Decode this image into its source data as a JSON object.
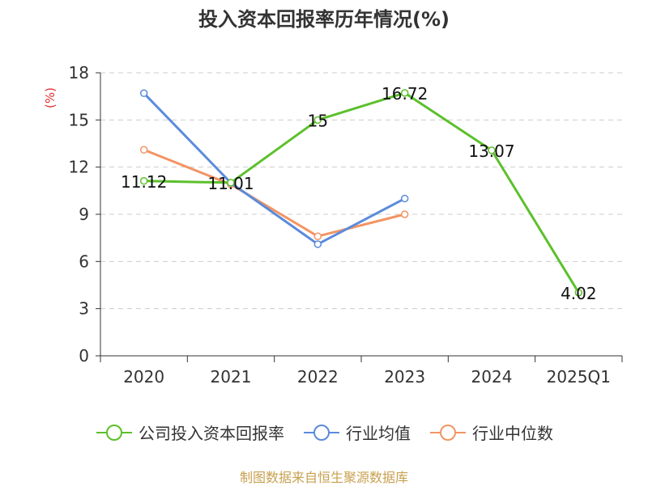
{
  "chart_data": {
    "type": "line",
    "title": "投入资本回报率历年情况(%)",
    "ylabel": "(%)",
    "categories": [
      "2020",
      "2021",
      "2022",
      "2023",
      "2024",
      "2025Q1"
    ],
    "ylim": [
      0,
      18
    ],
    "yticks": [
      0,
      3,
      6,
      9,
      12,
      15,
      18
    ],
    "grid": true,
    "legend_position": "bottom",
    "series": [
      {
        "name": "公司投入资本回报率",
        "color": "#5cc02c",
        "show_labels": true,
        "values": [
          11.12,
          11.01,
          15,
          16.72,
          13.07,
          4.02
        ]
      },
      {
        "name": "行业均值",
        "color": "#5b8bdc",
        "show_labels": false,
        "values": [
          16.7,
          11.0,
          7.1,
          10.0,
          null,
          null
        ]
      },
      {
        "name": "行业中位数",
        "color": "#f39464",
        "show_labels": false,
        "values": [
          13.1,
          10.9,
          7.6,
          9.0,
          null,
          null
        ]
      }
    ]
  },
  "source_note": "制图数据来自恒生聚源数据库"
}
